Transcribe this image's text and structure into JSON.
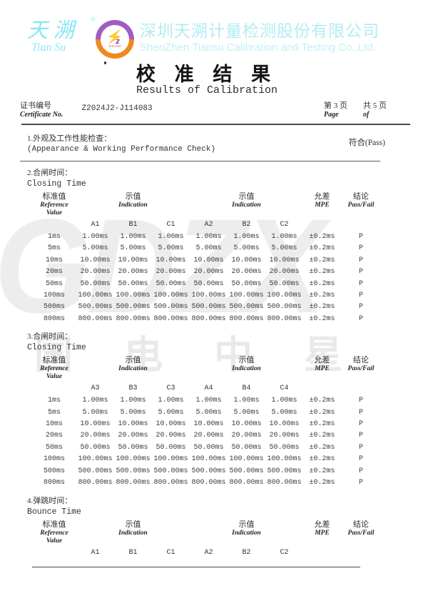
{
  "header": {
    "logo_cn": "天溯",
    "logo_en": "Tian Su",
    "registered_mark": "®",
    "badge_bolt_icon": "⚡",
    "badge_z": "z",
    "badge_years": "2018-2020",
    "company_cn": "深圳天溯计量检测股份有限公司",
    "company_en": "ShenZhen Tiansu Calibration and Testing Co.,Ltd.",
    "title_cn": "校 准 结 果",
    "title_en": "Results of Calibration"
  },
  "certificate": {
    "label_cn": "证书编号",
    "label_en": "Certificate No.",
    "number": "Z2024J2-J114083",
    "page_cn": "第 3 页",
    "page_en": "Page",
    "total_cn": "共 5 页",
    "total_en": "of"
  },
  "section1": {
    "title_cn": "1.外观及工作性能检查：",
    "title_en": "(Appearance & Working Performance Check)",
    "result": "符合(Pass)"
  },
  "table_header": {
    "ref_cn": "标准值",
    "ref_en1": "Reference",
    "ref_en2": "Value",
    "ind_cn": "示值",
    "ind_en": "Indication",
    "mpe_cn": "允差",
    "mpe_en": "MPE",
    "result_cn": "结论",
    "result_en": "Pass/Fail"
  },
  "tables": [
    {
      "section_cn": "2.合闸时间：",
      "section_en": "Closing Time",
      "columns": [
        "A1",
        "B1",
        "C1",
        "A2",
        "B2",
        "C2"
      ],
      "rows": [
        [
          "1ms",
          "1.00ms",
          "1.00ms",
          "1.00ms",
          "1.00ms",
          "1.00ms",
          "1.00ms",
          "±0.2ms",
          "P"
        ],
        [
          "5ms",
          "5.00ms",
          "5.00ms",
          "5.00ms",
          "5.00ms",
          "5.00ms",
          "5.00ms",
          "±0.2ms",
          "P"
        ],
        [
          "10ms",
          "10.00ms",
          "10.00ms",
          "10.00ms",
          "10.00ms",
          "10.00ms",
          "10.00ms",
          "±0.2ms",
          "P"
        ],
        [
          "20ms",
          "20.00ms",
          "20.00ms",
          "20.00ms",
          "20.00ms",
          "20.00ms",
          "20.00ms",
          "±0.2ms",
          "P"
        ],
        [
          "50ms",
          "50.00ms",
          "50.00ms",
          "50.00ms",
          "50.00ms",
          "50.00ms",
          "50.00ms",
          "±0.2ms",
          "P"
        ],
        [
          "100ms",
          "100.00ms",
          "100.00ms",
          "100.00ms",
          "100.00ms",
          "100.00ms",
          "100.00ms",
          "±0.2ms",
          "P"
        ],
        [
          "500ms",
          "500.00ms",
          "500.00ms",
          "500.00ms",
          "500.00ms",
          "500.00ms",
          "500.00ms",
          "±0.2ms",
          "P"
        ],
        [
          "800ms",
          "800.00ms",
          "800.00ms",
          "800.00ms",
          "800.00ms",
          "800.00ms",
          "800.00ms",
          "±0.2ms",
          "P"
        ]
      ]
    },
    {
      "section_cn": "3.合闸时间：",
      "section_en": "Closing Time",
      "columns": [
        "A3",
        "B3",
        "C3",
        "A4",
        "B4",
        "C4"
      ],
      "rows": [
        [
          "1ms",
          "1.00ms",
          "1.00ms",
          "1.00ms",
          "1.00ms",
          "1.00ms",
          "1.00ms",
          "±0.2ms",
          "P"
        ],
        [
          "5ms",
          "5.00ms",
          "5.00ms",
          "5.00ms",
          "5.00ms",
          "5.00ms",
          "5.00ms",
          "±0.2ms",
          "P"
        ],
        [
          "10ms",
          "10.00ms",
          "10.00ms",
          "10.00ms",
          "10.00ms",
          "10.00ms",
          "10.00ms",
          "±0.2ms",
          "P"
        ],
        [
          "20ms",
          "20.00ms",
          "20.00ms",
          "20.00ms",
          "20.00ms",
          "20.00ms",
          "20.00ms",
          "±0.2ms",
          "P"
        ],
        [
          "50ms",
          "50.00ms",
          "50.00ms",
          "50.00ms",
          "50.00ms",
          "50.00ms",
          "50.00ms",
          "±0.2ms",
          "P"
        ],
        [
          "100ms",
          "100.00ms",
          "100.00ms",
          "100.00ms",
          "100.00ms",
          "100.00ms",
          "100.00ms",
          "±0.2ms",
          "P"
        ],
        [
          "500ms",
          "500.00ms",
          "500.00ms",
          "500.00ms",
          "500.00ms",
          "500.00ms",
          "500.00ms",
          "±0.2ms",
          "P"
        ],
        [
          "800ms",
          "800.00ms",
          "800.00ms",
          "800.00ms",
          "800.00ms",
          "800.00ms",
          "800.00ms",
          "±0.2ms",
          "P"
        ]
      ]
    },
    {
      "section_cn": "4.弹跳时间：",
      "section_en": "Bounce Time",
      "columns": [
        "A1",
        "B1",
        "C1",
        "A2",
        "B2",
        "C2"
      ],
      "rows": []
    }
  ],
  "watermark": {
    "letters": "GDZX",
    "cn": "国电中星"
  },
  "colors": {
    "brand_cyan": "#b2ebf5",
    "badge_purple": "#a05cc5",
    "badge_orange": "#f08a1f",
    "watermark_gray": "#ededed",
    "text": "#3b3b3b"
  }
}
